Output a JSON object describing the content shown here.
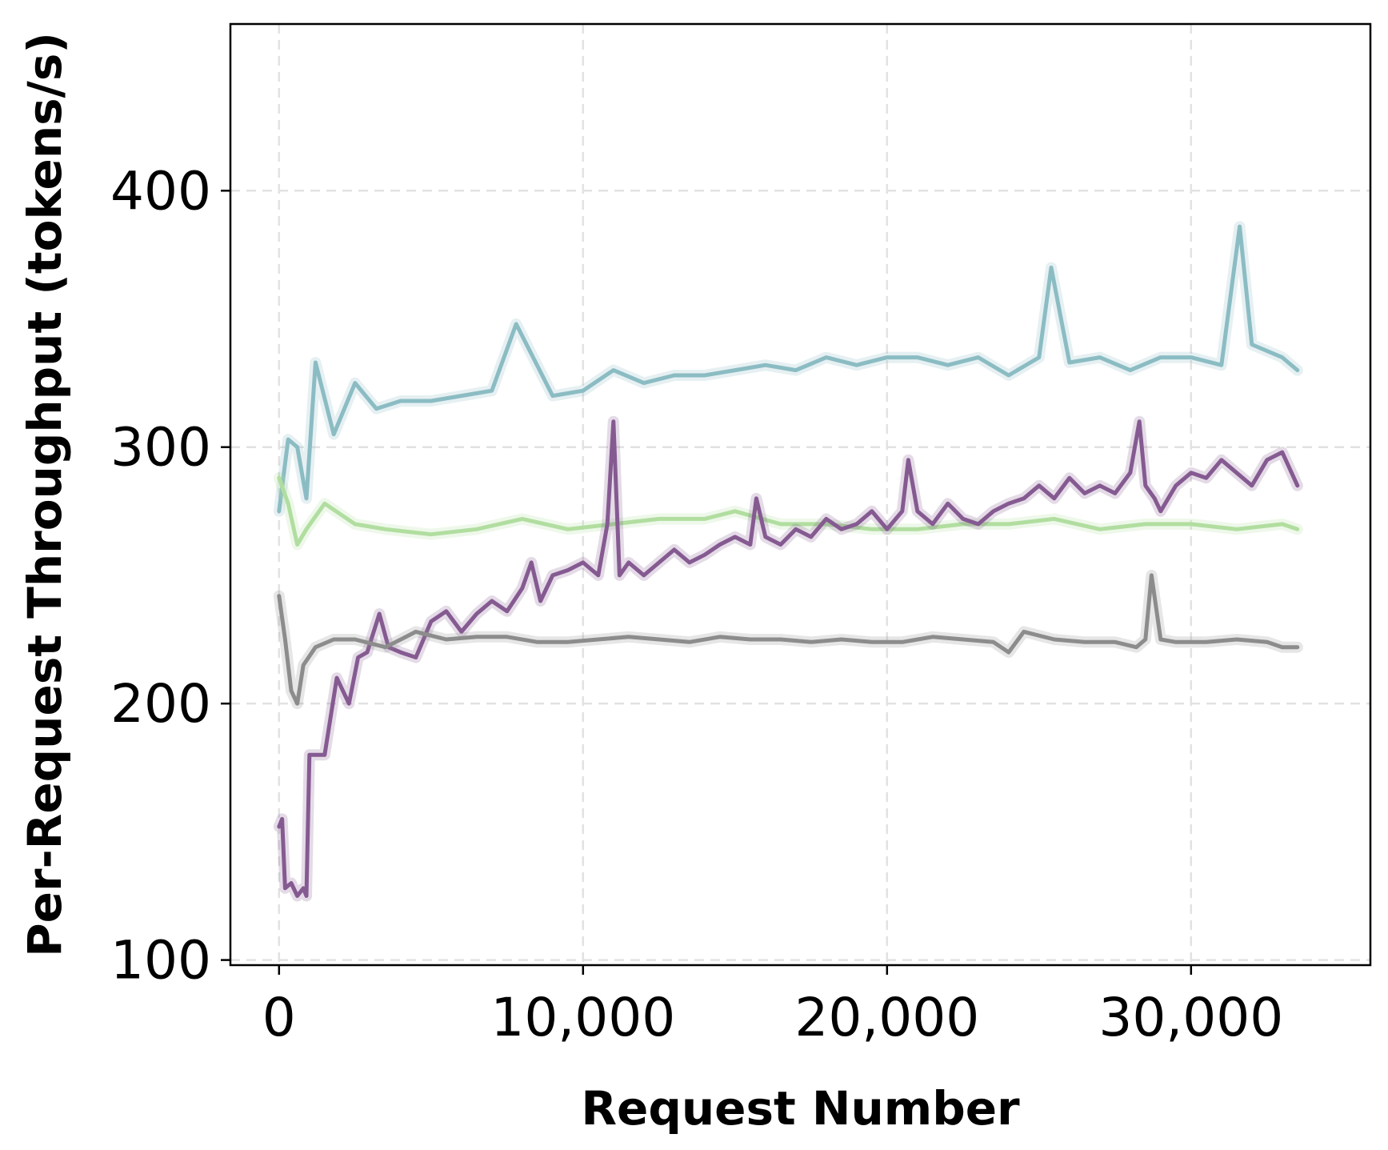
{
  "chart_data": {
    "type": "line",
    "title": "",
    "xlabel": "Request Number",
    "ylabel": "Per-Request Throughput (tokens/s)",
    "xlim": [
      -1600,
      35900
    ],
    "ylim": [
      98,
      465
    ],
    "xticks": [
      0,
      10000,
      20000,
      30000
    ],
    "xtick_labels": [
      "0",
      "10,000",
      "20,000",
      "30,000"
    ],
    "yticks": [
      100,
      200,
      300,
      400
    ],
    "ytick_labels": [
      "100",
      "200",
      "300",
      "400"
    ],
    "grid": true,
    "legend": "none",
    "series": [
      {
        "color": "#8bbcc3",
        "x": [
          0,
          300,
          600,
          900,
          1200,
          1800,
          2500,
          3200,
          4000,
          5000,
          6000,
          7000,
          7800,
          9000,
          10000,
          11000,
          12000,
          13000,
          14000,
          15000,
          16000,
          17000,
          18000,
          19000,
          20000,
          21000,
          22000,
          23000,
          24000,
          25000,
          25400,
          26000,
          27000,
          28000,
          29000,
          30000,
          31000,
          31600,
          32000,
          33000,
          33500
        ],
        "y": [
          275,
          303,
          300,
          280,
          333,
          305,
          325,
          315,
          318,
          318,
          320,
          322,
          348,
          320,
          322,
          330,
          325,
          328,
          328,
          330,
          332,
          330,
          335,
          332,
          335,
          335,
          332,
          335,
          328,
          335,
          370,
          333,
          335,
          330,
          335,
          335,
          332,
          386,
          340,
          335,
          330
        ]
      },
      {
        "color": "#b1dea0",
        "x": [
          0,
          300,
          600,
          900,
          1500,
          2500,
          3500,
          5000,
          6500,
          8000,
          9500,
          11000,
          12500,
          14000,
          15000,
          16500,
          18000,
          19500,
          21000,
          22500,
          24000,
          25500,
          27000,
          28500,
          30000,
          31500,
          33000,
          33500
        ],
        "y": [
          288,
          278,
          262,
          268,
          278,
          270,
          268,
          266,
          268,
          272,
          268,
          270,
          272,
          272,
          275,
          270,
          270,
          268,
          268,
          270,
          270,
          272,
          268,
          270,
          270,
          268,
          270,
          268
        ]
      },
      {
        "color": "#855a91",
        "x": [
          0,
          100,
          200,
          400,
          600,
          800,
          900,
          1000,
          1500,
          1700,
          1900,
          2300,
          2600,
          2900,
          3300,
          3600,
          4000,
          4500,
          5000,
          5500,
          6000,
          6500,
          7000,
          7500,
          8000,
          8300,
          8600,
          9000,
          9500,
          10000,
          10500,
          10800,
          11000,
          11200,
          11500,
          12000,
          12500,
          13000,
          13500,
          14000,
          14500,
          15000,
          15500,
          15700,
          16000,
          16500,
          17000,
          17500,
          18000,
          18500,
          19000,
          19500,
          20000,
          20500,
          20700,
          21000,
          21500,
          22000,
          22500,
          23000,
          23500,
          24000,
          24500,
          25000,
          25500,
          26000,
          26500,
          27000,
          27500,
          28000,
          28300,
          28500,
          28800,
          29000,
          29500,
          30000,
          30500,
          31000,
          31500,
          32000,
          32500,
          33000,
          33500
        ],
        "y": [
          152,
          155,
          128,
          130,
          125,
          128,
          125,
          180,
          180,
          195,
          210,
          200,
          218,
          220,
          235,
          222,
          220,
          218,
          232,
          236,
          228,
          235,
          240,
          236,
          245,
          255,
          240,
          250,
          252,
          255,
          250,
          270,
          310,
          250,
          255,
          250,
          255,
          260,
          255,
          258,
          262,
          265,
          262,
          280,
          265,
          262,
          268,
          265,
          272,
          268,
          270,
          275,
          268,
          275,
          295,
          275,
          270,
          278,
          272,
          270,
          275,
          278,
          280,
          285,
          280,
          288,
          282,
          285,
          282,
          290,
          310,
          285,
          280,
          275,
          285,
          290,
          288,
          295,
          290,
          285,
          295,
          298,
          285
        ]
      },
      {
        "color": "#8c8c8c",
        "x": [
          0,
          200,
          400,
          600,
          800,
          1200,
          1800,
          2500,
          3500,
          4500,
          5500,
          6500,
          7500,
          8500,
          9500,
          10500,
          11500,
          12500,
          13500,
          14500,
          15500,
          16500,
          17500,
          18500,
          19500,
          20500,
          21500,
          22500,
          23500,
          24000,
          24500,
          25500,
          26500,
          27500,
          28200,
          28500,
          28700,
          29000,
          29500,
          30500,
          31500,
          32500,
          33000,
          33500
        ],
        "y": [
          242,
          225,
          205,
          200,
          215,
          222,
          225,
          225,
          222,
          228,
          225,
          226,
          226,
          224,
          224,
          225,
          226,
          225,
          224,
          226,
          225,
          225,
          224,
          225,
          224,
          224,
          226,
          225,
          224,
          220,
          228,
          225,
          224,
          224,
          222,
          225,
          250,
          225,
          224,
          224,
          225,
          224,
          222,
          222
        ]
      }
    ]
  }
}
